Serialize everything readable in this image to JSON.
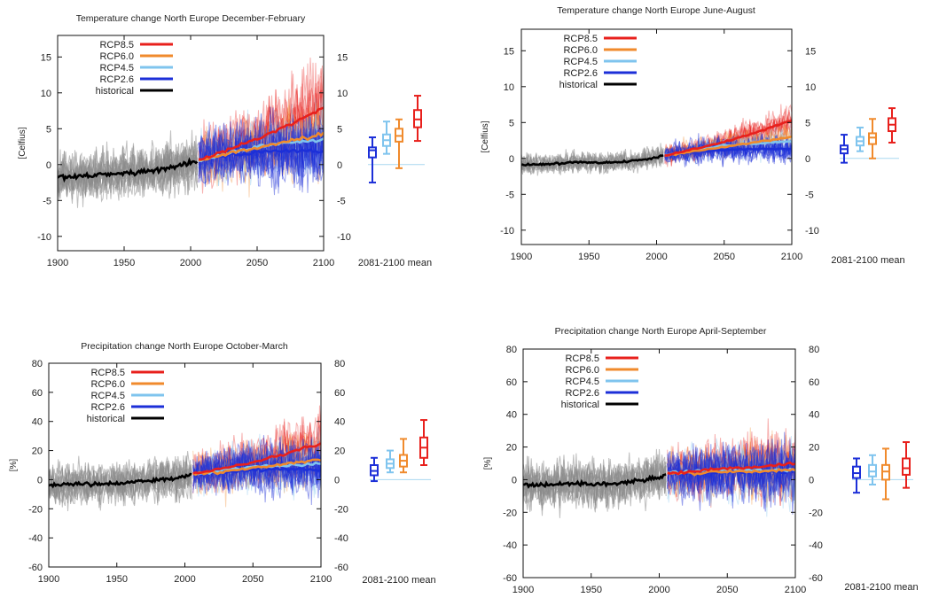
{
  "colors": {
    "rcp85": "#e8201c",
    "rcp60": "#f08a2c",
    "rcp45": "#7fc4ee",
    "rcp26": "#1c2fd8",
    "historical": "#000000",
    "ensemble_historical": "#8a8a8a",
    "baseline": "#a9d8f0"
  },
  "chart_data": [
    {
      "type": "line",
      "title": "Temperature change North Europe December-February",
      "ylabel": "[Celfius]",
      "xlim": [
        1900,
        2100
      ],
      "ylim": [
        -12,
        18
      ],
      "xticks": [
        1900,
        1950,
        2000,
        2050,
        2100
      ],
      "yticks": [
        -10,
        -5,
        0,
        5,
        10,
        15
      ],
      "box_label": "2081-2100 mean",
      "legend_placement": "top-left",
      "grid": false,
      "series": [
        {
          "name": "RCP8.5",
          "key": "rcp85",
          "x": [
            2006,
            2025,
            2050,
            2075,
            2100
          ],
          "y": [
            0.6,
            1.8,
            3.6,
            5.6,
            8.0
          ]
        },
        {
          "name": "RCP6.0",
          "key": "rcp60",
          "x": [
            2006,
            2025,
            2050,
            2075,
            2100
          ],
          "y": [
            0.6,
            1.3,
            2.4,
            3.3,
            4.3
          ]
        },
        {
          "name": "RCP4.5",
          "key": "rcp45",
          "x": [
            2006,
            2025,
            2050,
            2075,
            2100
          ],
          "y": [
            0.6,
            1.4,
            2.5,
            3.1,
            3.5
          ]
        },
        {
          "name": "RCP2.6",
          "key": "rcp26",
          "x": [
            2006,
            2025,
            2050,
            2075,
            2100
          ],
          "y": [
            0.6,
            1.3,
            1.8,
            1.9,
            1.9
          ]
        },
        {
          "name": "historical",
          "key": "historical",
          "x": [
            1900,
            1920,
            1940,
            1960,
            1980,
            2000,
            2005
          ],
          "y": [
            -1.7,
            -1.6,
            -1.3,
            -1.1,
            -0.6,
            0.2,
            0.6
          ]
        }
      ],
      "boxes": [
        {
          "key": "rcp26",
          "min": -2.5,
          "q1": 1.0,
          "median": 2.0,
          "q3": 2.4,
          "max": 3.8
        },
        {
          "key": "rcp45",
          "min": 1.5,
          "q1": 2.6,
          "median": 3.4,
          "q3": 4.2,
          "max": 6.0
        },
        {
          "key": "rcp60",
          "min": -0.5,
          "q1": 3.2,
          "median": 4.0,
          "q3": 5.0,
          "max": 6.3
        },
        {
          "key": "rcp85",
          "min": 3.3,
          "q1": 5.2,
          "median": 6.3,
          "q3": 7.6,
          "max": 9.6
        }
      ]
    },
    {
      "type": "line",
      "title": "Temperature change North Europe June-August",
      "ylabel": "[Celfius]",
      "xlim": [
        1900,
        2100
      ],
      "ylim": [
        -12,
        18
      ],
      "xticks": [
        1900,
        1950,
        2000,
        2050,
        2100
      ],
      "yticks": [
        -10,
        -5,
        0,
        5,
        10,
        15
      ],
      "box_label": "2081-2100 mean",
      "legend_placement": "top-left",
      "grid": false,
      "series": [
        {
          "name": "RCP8.5",
          "key": "rcp85",
          "x": [
            2006,
            2025,
            2050,
            2075,
            2100
          ],
          "y": [
            0.4,
            1.2,
            2.3,
            3.7,
            5.3
          ]
        },
        {
          "name": "RCP6.0",
          "key": "rcp60",
          "x": [
            2006,
            2025,
            2050,
            2075,
            2100
          ],
          "y": [
            0.4,
            0.9,
            1.6,
            2.3,
            3.0
          ]
        },
        {
          "name": "RCP4.5",
          "key": "rcp45",
          "x": [
            2006,
            2025,
            2050,
            2075,
            2100
          ],
          "y": [
            0.4,
            1.0,
            1.8,
            2.1,
            2.4
          ]
        },
        {
          "name": "RCP2.6",
          "key": "rcp26",
          "x": [
            2006,
            2025,
            2050,
            2075,
            2100
          ],
          "y": [
            0.4,
            0.9,
            1.2,
            1.3,
            1.3
          ]
        },
        {
          "name": "historical",
          "key": "historical",
          "x": [
            1900,
            1920,
            1940,
            1960,
            1980,
            2000,
            2005
          ],
          "y": [
            -0.9,
            -0.8,
            -0.5,
            -0.6,
            -0.4,
            0.1,
            0.4
          ]
        }
      ],
      "boxes": [
        {
          "key": "rcp26",
          "min": -0.6,
          "q1": 0.7,
          "median": 1.3,
          "q3": 1.8,
          "max": 3.3
        },
        {
          "key": "rcp45",
          "min": 1.0,
          "q1": 1.8,
          "median": 2.4,
          "q3": 3.0,
          "max": 4.3
        },
        {
          "key": "rcp60",
          "min": 0.0,
          "q1": 2.0,
          "median": 2.9,
          "q3": 3.5,
          "max": 5.5
        },
        {
          "key": "rcp85",
          "min": 2.2,
          "q1": 3.8,
          "median": 4.7,
          "q3": 5.6,
          "max": 7.0
        }
      ]
    },
    {
      "type": "line",
      "title": "Precipitation change North Europe October-March",
      "ylabel": "[%]",
      "xlim": [
        1900,
        2100
      ],
      "ylim": [
        -60,
        80
      ],
      "xticks": [
        1900,
        1950,
        2000,
        2050,
        2100
      ],
      "yticks": [
        -60,
        -40,
        -20,
        0,
        20,
        40,
        60,
        80
      ],
      "box_label": "2081-2100 mean",
      "legend_placement": "top-left",
      "grid": false,
      "series": [
        {
          "name": "RCP8.5",
          "key": "rcp85",
          "x": [
            2006,
            2025,
            2050,
            2075,
            2100
          ],
          "y": [
            4,
            7,
            12,
            18,
            25
          ]
        },
        {
          "name": "RCP6.0",
          "key": "rcp60",
          "x": [
            2006,
            2025,
            2050,
            2075,
            2100
          ],
          "y": [
            4,
            5,
            8,
            11,
            14
          ]
        },
        {
          "name": "RCP4.5",
          "key": "rcp45",
          "x": [
            2006,
            2025,
            2050,
            2075,
            2100
          ],
          "y": [
            4,
            6,
            9,
            10,
            11
          ]
        },
        {
          "name": "RCP2.6",
          "key": "rcp26",
          "x": [
            2006,
            2025,
            2050,
            2075,
            2100
          ],
          "y": [
            4,
            5,
            7,
            7,
            7
          ]
        },
        {
          "name": "historical",
          "key": "historical",
          "x": [
            1900,
            1920,
            1940,
            1960,
            1980,
            2000,
            2005
          ],
          "y": [
            -4,
            -3,
            -3,
            -2,
            0,
            2,
            4
          ]
        }
      ],
      "boxes": [
        {
          "key": "rcp26",
          "min": -1,
          "q1": 3,
          "median": 6,
          "q3": 10,
          "max": 15
        },
        {
          "key": "rcp45",
          "min": 5,
          "q1": 8,
          "median": 11,
          "q3": 14,
          "max": 20
        },
        {
          "key": "rcp60",
          "min": 5,
          "q1": 9,
          "median": 13,
          "q3": 17,
          "max": 28
        },
        {
          "key": "rcp85",
          "min": 10,
          "q1": 15,
          "median": 22,
          "q3": 29,
          "max": 41
        }
      ]
    },
    {
      "type": "line",
      "title": "Precipitation change North Europe April-September",
      "ylabel": "[%]",
      "xlim": [
        1900,
        2100
      ],
      "ylim": [
        -60,
        80
      ],
      "xticks": [
        1900,
        1950,
        2000,
        2050,
        2100
      ],
      "yticks": [
        -60,
        -40,
        -20,
        0,
        20,
        40,
        60,
        80
      ],
      "box_label": "2081-2100 mean",
      "legend_placement": "top-left",
      "grid": false,
      "series": [
        {
          "name": "RCP8.5",
          "key": "rcp85",
          "x": [
            2006,
            2025,
            2050,
            2075,
            2100
          ],
          "y": [
            4,
            5,
            7,
            8,
            10
          ]
        },
        {
          "name": "RCP6.0",
          "key": "rcp60",
          "x": [
            2006,
            2025,
            2050,
            2075,
            2100
          ],
          "y": [
            4,
            4,
            5,
            5,
            6
          ]
        },
        {
          "name": "RCP4.5",
          "key": "rcp45",
          "x": [
            2006,
            2025,
            2050,
            2075,
            2100
          ],
          "y": [
            4,
            5,
            6,
            6,
            6
          ]
        },
        {
          "name": "RCP2.6",
          "key": "rcp26",
          "x": [
            2006,
            2025,
            2050,
            2075,
            2100
          ],
          "y": [
            4,
            4,
            5,
            5,
            5
          ]
        },
        {
          "name": "historical",
          "key": "historical",
          "x": [
            1900,
            1920,
            1940,
            1960,
            1980,
            2000,
            2005
          ],
          "y": [
            -3,
            -3,
            -2,
            -3,
            -1,
            1,
            3
          ]
        }
      ],
      "boxes": [
        {
          "key": "rcp26",
          "min": -8,
          "q1": 1,
          "median": 4,
          "q3": 8,
          "max": 13
        },
        {
          "key": "rcp45",
          "min": -3,
          "q1": 2,
          "median": 5,
          "q3": 9,
          "max": 15
        },
        {
          "key": "rcp60",
          "min": -12,
          "q1": 0,
          "median": 5,
          "q3": 9,
          "max": 19
        },
        {
          "key": "rcp85",
          "min": -5,
          "q1": 3,
          "median": 7,
          "q3": 13,
          "max": 23
        }
      ]
    }
  ]
}
